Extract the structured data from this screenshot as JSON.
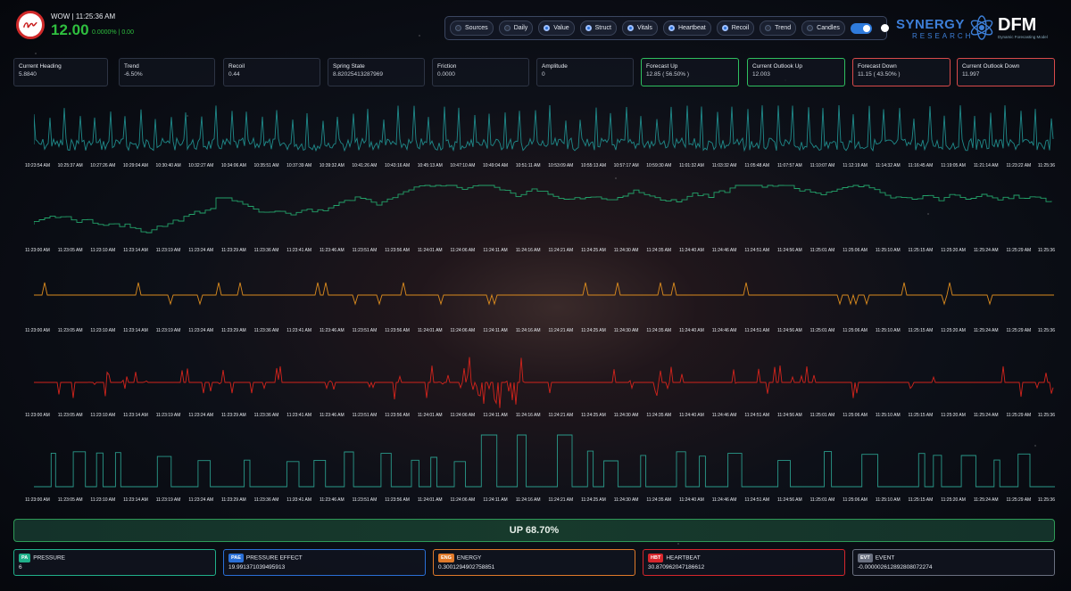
{
  "header": {
    "ticker_title": "WOW | 11:25:36 AM",
    "price": "12.00",
    "change": "0.0000% | 0.00"
  },
  "toolbar": {
    "buttons": [
      {
        "label": "Sources",
        "on": false
      },
      {
        "label": "Daily",
        "on": false
      },
      {
        "label": "Value",
        "on": true
      },
      {
        "label": "Struct",
        "on": true
      },
      {
        "label": "Vitals",
        "on": true
      },
      {
        "label": "Heartbeat",
        "on": true
      },
      {
        "label": "Recoil",
        "on": true
      },
      {
        "label": "Trend",
        "on": false
      },
      {
        "label": "Candles",
        "on": false
      }
    ]
  },
  "brand": {
    "name": "SYNERGY",
    "sub": "RESEARCH",
    "product": "DFM",
    "tagline": "Dynamic Forecasting Model"
  },
  "stats": [
    {
      "label": "Current Heading",
      "value": "5.8840",
      "style": ""
    },
    {
      "label": "Trend",
      "value": "-6.50%",
      "style": ""
    },
    {
      "label": "Recoil",
      "value": "0.44",
      "style": ""
    },
    {
      "label": "Spring State",
      "value": "8.82025413287969",
      "style": ""
    },
    {
      "label": "Friction",
      "value": "0.0000",
      "style": ""
    },
    {
      "label": "Amplitude",
      "value": "0",
      "style": ""
    },
    {
      "label": "Forecast Up",
      "value": "12.85 ( 56.50% )",
      "style": "green"
    },
    {
      "label": "Current Outlook Up",
      "value": "12.003",
      "style": "green"
    },
    {
      "label": "Forecast Down",
      "value": "11.15 ( 43.50% )",
      "style": "red"
    },
    {
      "label": "Current Outlook Down",
      "value": "11.997",
      "style": "red"
    }
  ],
  "chart_data": [
    {
      "type": "line",
      "series": [
        {
          "color": "#1f8a8a"
        }
      ],
      "x": [
        "10:23:54 AM",
        "10:25:37 AM",
        "10:27:26 AM",
        "10:29:04 AM",
        "10:30:40 AM",
        "10:32:27 AM",
        "10:34:06 AM",
        "10:35:51 AM",
        "10:37:39 AM",
        "10:39:32 AM",
        "10:41:26 AM",
        "10:43:16 AM",
        "10:45:13 AM",
        "10:47:10 AM",
        "10:49:04 AM",
        "10:51:11 AM",
        "10:53:09 AM",
        "10:55:13 AM",
        "10:57:17 AM",
        "10:59:30 AM",
        "11:01:32 AM",
        "11:03:32 AM",
        "11:05:48 AM",
        "11:07:57 AM",
        "11:10:07 AM",
        "11:12:19 AM",
        "11:14:32 AM",
        "11:16:45 AM",
        "11:19:05 AM",
        "11:21:14 AM",
        "11:23:22 AM",
        "11:25:36"
      ]
    },
    {
      "type": "line",
      "series": [
        {
          "color": "#23a36a"
        }
      ],
      "x": [
        "11:23:00 AM",
        "11:23:05 AM",
        "11:23:10 AM",
        "11:23:14 AM",
        "11:23:19 AM",
        "11:23:24 AM",
        "11:23:29 AM",
        "11:23:36 AM",
        "11:23:41 AM",
        "11:23:46 AM",
        "11:23:51 AM",
        "11:23:56 AM",
        "11:24:01 AM",
        "11:24:06 AM",
        "11:24:11 AM",
        "11:24:16 AM",
        "11:24:21 AM",
        "11:24:25 AM",
        "11:24:30 AM",
        "11:24:35 AM",
        "11:24:40 AM",
        "11:24:46 AM",
        "11:24:51 AM",
        "11:24:56 AM",
        "11:25:01 AM",
        "11:25:06 AM",
        "11:25:10 AM",
        "11:25:15 AM",
        "11:25:20 AM",
        "11:25:24 AM",
        "11:25:29 AM",
        "11:25:36"
      ]
    },
    {
      "type": "line",
      "series": [
        {
          "color": "#d98a1e"
        }
      ],
      "x": [
        "11:23:00 AM",
        "11:23:05 AM",
        "11:23:10 AM",
        "11:23:14 AM",
        "11:23:19 AM",
        "11:23:24 AM",
        "11:23:29 AM",
        "11:23:36 AM",
        "11:23:41 AM",
        "11:23:46 AM",
        "11:23:51 AM",
        "11:23:56 AM",
        "11:24:01 AM",
        "11:24:06 AM",
        "11:24:11 AM",
        "11:24:16 AM",
        "11:24:21 AM",
        "11:24:25 AM",
        "11:24:30 AM",
        "11:24:35 AM",
        "11:24:40 AM",
        "11:24:46 AM",
        "11:24:51 AM",
        "11:24:56 AM",
        "11:25:01 AM",
        "11:25:06 AM",
        "11:25:10 AM",
        "11:25:15 AM",
        "11:25:20 AM",
        "11:25:24 AM",
        "11:25:29 AM",
        "11:25:36"
      ]
    },
    {
      "type": "line",
      "series": [
        {
          "color": "#d2241c"
        }
      ],
      "x": [
        "11:23:00 AM",
        "11:23:05 AM",
        "11:23:10 AM",
        "11:23:14 AM",
        "11:23:19 AM",
        "11:23:24 AM",
        "11:23:29 AM",
        "11:23:36 AM",
        "11:23:41 AM",
        "11:23:46 AM",
        "11:23:51 AM",
        "11:23:56 AM",
        "11:24:01 AM",
        "11:24:06 AM",
        "11:24:11 AM",
        "11:24:16 AM",
        "11:24:21 AM",
        "11:24:25 AM",
        "11:24:30 AM",
        "11:24:35 AM",
        "11:24:40 AM",
        "11:24:46 AM",
        "11:24:51 AM",
        "11:24:56 AM",
        "11:25:01 AM",
        "11:25:06 AM",
        "11:25:10 AM",
        "11:25:15 AM",
        "11:25:20 AM",
        "11:25:24 AM",
        "11:25:29 AM",
        "11:25:36"
      ]
    },
    {
      "type": "line",
      "series": [
        {
          "color": "#2a9a8a"
        }
      ],
      "x": [
        "11:23:00 AM",
        "11:23:05 AM",
        "11:23:10 AM",
        "11:23:14 AM",
        "11:23:19 AM",
        "11:23:24 AM",
        "11:23:29 AM",
        "11:23:36 AM",
        "11:23:41 AM",
        "11:23:46 AM",
        "11:23:51 AM",
        "11:23:56 AM",
        "11:24:01 AM",
        "11:24:06 AM",
        "11:24:11 AM",
        "11:24:16 AM",
        "11:24:21 AM",
        "11:24:25 AM",
        "11:24:30 AM",
        "11:24:35 AM",
        "11:24:40 AM",
        "11:24:46 AM",
        "11:24:51 AM",
        "11:24:56 AM",
        "11:25:01 AM",
        "11:25:06 AM",
        "11:25:10 AM",
        "11:25:15 AM",
        "11:25:20 AM",
        "11:25:24 AM",
        "11:25:29 AM",
        "11:25:36"
      ]
    }
  ],
  "status": {
    "label": "UP 68.70%"
  },
  "metrics": [
    {
      "badge": "PA",
      "label": "PRESSURE",
      "value": "6",
      "color": "#20b08a"
    },
    {
      "badge": "PAE",
      "label": "PRESSURE EFFECT",
      "value": "19.9913710394959​13",
      "color": "#2a6fd6"
    },
    {
      "badge": "ENG",
      "label": "ENERGY",
      "value": "0.300129490275885​1",
      "color": "#e07a2a"
    },
    {
      "badge": "HBT",
      "label": "HEARTBEAT",
      "value": "30.870962047186612",
      "color": "#d6262c"
    },
    {
      "badge": "EVT",
      "label": "EVENT",
      "value": "-0.000002612892808072274",
      "color": "#6a7080"
    }
  ]
}
